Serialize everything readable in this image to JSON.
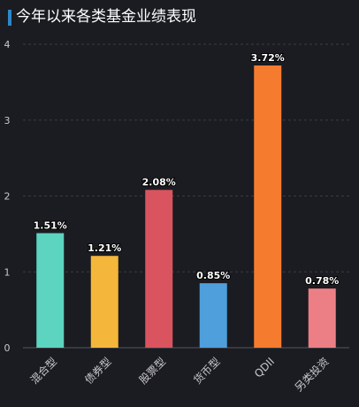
{
  "title": "今年以来各类基金业绩表现",
  "chart_data": {
    "type": "bar",
    "title": "今年以来各类基金业绩表现",
    "categories": [
      "混合型",
      "债券型",
      "股票型",
      "货币型",
      "QDII",
      "另类投资"
    ],
    "values": [
      1.51,
      1.21,
      2.08,
      0.85,
      3.72,
      0.78
    ],
    "data_labels": [
      "1.51%",
      "1.21%",
      "2.08%",
      "0.85%",
      "3.72%",
      "0.78%"
    ],
    "colors": [
      "#5dd4c0",
      "#f5b73b",
      "#d9545f",
      "#4e9fdc",
      "#f57c2f",
      "#ec7f85"
    ],
    "ylim": [
      0,
      4
    ],
    "yticks": [
      "0",
      "1",
      "2",
      "3",
      "4"
    ],
    "grid": true
  }
}
